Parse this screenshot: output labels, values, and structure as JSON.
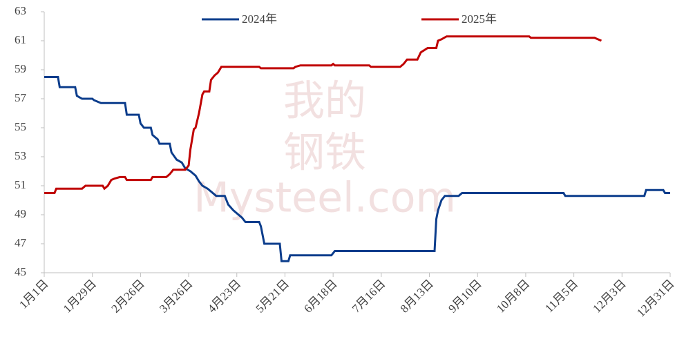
{
  "chart_data": {
    "type": "line",
    "watermark": [
      "我的",
      "钢铁",
      "Mysteel.com"
    ],
    "xlim": [
      0,
      364
    ],
    "xticks": [
      {
        "value": 0,
        "label": "1月1日"
      },
      {
        "value": 28,
        "label": "1月29日"
      },
      {
        "value": 56,
        "label": "2月26日"
      },
      {
        "value": 84,
        "label": "3月26日"
      },
      {
        "value": 112,
        "label": "4月23日"
      },
      {
        "value": 140,
        "label": "5月21日"
      },
      {
        "value": 168,
        "label": "6月18日"
      },
      {
        "value": 196,
        "label": "7月16日"
      },
      {
        "value": 224,
        "label": "8月13日"
      },
      {
        "value": 252,
        "label": "9月10日"
      },
      {
        "value": 280,
        "label": "10月8日"
      },
      {
        "value": 308,
        "label": "11月5日"
      },
      {
        "value": 336,
        "label": "12月3日"
      },
      {
        "value": 364,
        "label": "12月31日"
      }
    ],
    "ylim": [
      45,
      63
    ],
    "yticks": [
      45,
      47,
      49,
      51,
      53,
      55,
      57,
      59,
      61,
      63
    ],
    "grid": false,
    "series": [
      {
        "name": "2024年",
        "color": "#0c3d8c",
        "x": [
          0,
          8,
          9,
          18,
          19,
          22,
          28,
          29,
          33,
          47,
          48,
          55,
          56,
          58,
          62,
          63,
          66,
          67,
          73,
          74,
          77,
          80,
          82,
          85,
          88,
          90,
          92,
          95,
          97,
          100,
          105,
          107,
          110,
          113,
          115,
          117,
          125,
          126,
          128,
          137,
          138,
          142,
          143,
          167,
          169,
          227,
          228,
          229,
          231,
          233,
          241,
          243,
          302,
          303,
          349,
          350,
          360,
          361,
          364
        ],
        "values": [
          58.5,
          58.5,
          57.8,
          57.8,
          57.2,
          57.0,
          57.0,
          56.9,
          56.7,
          56.7,
          55.9,
          55.9,
          55.3,
          55.0,
          55.0,
          54.5,
          54.2,
          53.9,
          53.9,
          53.3,
          52.8,
          52.6,
          52.2,
          52.0,
          51.7,
          51.3,
          51.0,
          50.8,
          50.6,
          50.3,
          50.3,
          49.7,
          49.3,
          49.0,
          48.8,
          48.5,
          48.5,
          48.2,
          47.0,
          47.0,
          45.8,
          45.8,
          46.2,
          46.2,
          46.5,
          46.5,
          48.7,
          49.3,
          50.0,
          50.3,
          50.3,
          50.5,
          50.5,
          50.3,
          50.3,
          50.7,
          50.7,
          50.5,
          50.5
        ]
      },
      {
        "name": "2025年",
        "color": "#c00000",
        "x": [
          0,
          6,
          7,
          22,
          24,
          34,
          35,
          37,
          39,
          41,
          44,
          47,
          48,
          62,
          63,
          71,
          73,
          75,
          82,
          84,
          85,
          87,
          88,
          90,
          92,
          93,
          96,
          97,
          99,
          101,
          103,
          125,
          126,
          145,
          146,
          149,
          167,
          168,
          169,
          189,
          190,
          207,
          209,
          211,
          217,
          219,
          223,
          228,
          229,
          231,
          234,
          282,
          283,
          320,
          322,
          324
        ],
        "values": [
          50.5,
          50.5,
          50.8,
          50.8,
          51.0,
          51.0,
          50.8,
          51.0,
          51.4,
          51.5,
          51.6,
          51.6,
          51.4,
          51.4,
          51.6,
          51.6,
          51.8,
          52.1,
          52.1,
          52.4,
          53.5,
          54.9,
          55.0,
          56.0,
          57.3,
          57.5,
          57.5,
          58.3,
          58.6,
          58.8,
          59.2,
          59.2,
          59.1,
          59.1,
          59.2,
          59.3,
          59.3,
          59.4,
          59.3,
          59.3,
          59.2,
          59.2,
          59.4,
          59.7,
          59.7,
          60.2,
          60.5,
          60.5,
          61.0,
          61.1,
          61.3,
          61.3,
          61.2,
          61.2,
          61.1,
          61.0
        ]
      }
    ]
  }
}
